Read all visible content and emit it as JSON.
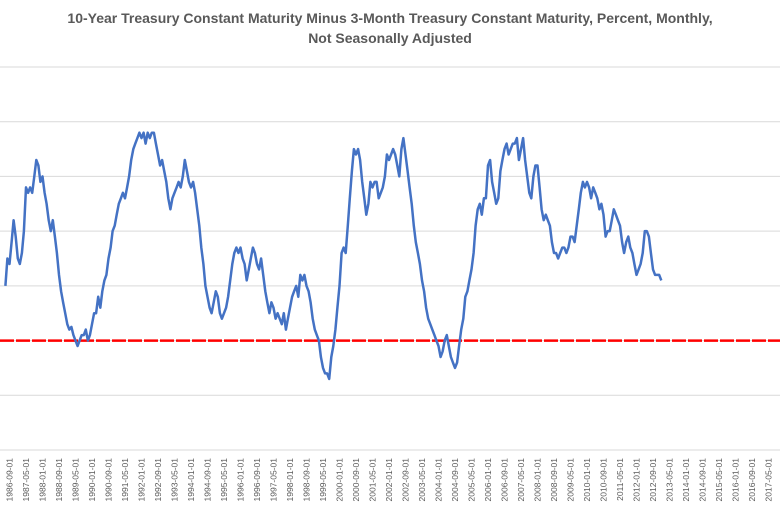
{
  "chart_data": {
    "type": "line",
    "title_line1": "10-Year Treasury Constant Maturity Minus 3-Month Treasury Constant Maturity, Percent, Monthly,",
    "title_line2": "Not Seasonally Adjusted",
    "xlabel": "",
    "ylabel": "",
    "grid": true,
    "legend": "none",
    "ylim": [
      -2,
      5
    ],
    "line_color": "#4472c4",
    "reference_line": {
      "value": 0,
      "color": "#ff0000",
      "style": "dotted"
    },
    "x_tick_labels": [
      "1986-09-01",
      "1987-05-01",
      "1988-01-01",
      "1988-09-01",
      "1989-05-01",
      "1990-01-01",
      "1990-09-01",
      "1991-05-01",
      "1992-01-01",
      "1992-09-01",
      "1993-05-01",
      "1994-01-01",
      "1994-09-01",
      "1995-05-01",
      "1996-01-01",
      "1996-09-01",
      "1997-05-01",
      "1998-01-01",
      "1998-09-01",
      "1999-05-01",
      "2000-01-01",
      "2000-09-01",
      "2001-05-01",
      "2002-01-01",
      "2002-09-01",
      "2003-05-01",
      "2004-01-01",
      "2004-09-01",
      "2005-05-01",
      "2006-01-01",
      "2006-09-01",
      "2007-05-01",
      "2008-01-01",
      "2008-09-01",
      "2009-05-01",
      "2010-01-01",
      "2010-09-01",
      "2011-05-01",
      "2012-01-01",
      "2012-09-01",
      "2013-05-01",
      "2014-01-01",
      "2014-09-01",
      "2015-05-01",
      "2016-01-01",
      "2016-09-01",
      "2017-05-01"
    ],
    "series": [
      {
        "x_start": "1986-07-01",
        "step_months": 1,
        "values": [
          1.0,
          1.5,
          1.4,
          1.8,
          2.2,
          1.9,
          1.5,
          1.4,
          1.6,
          2.0,
          2.8,
          2.7,
          2.8,
          2.7,
          3.0,
          3.3,
          3.2,
          2.9,
          3.0,
          2.7,
          2.5,
          2.2,
          2.0,
          2.2,
          1.9,
          1.6,
          1.2,
          0.9,
          0.7,
          0.5,
          0.3,
          0.2,
          0.25,
          0.1,
          0.0,
          -0.1,
          0.0,
          0.1,
          0.1,
          0.2,
          0.0,
          0.1,
          0.3,
          0.5,
          0.5,
          0.8,
          0.6,
          0.9,
          1.1,
          1.2,
          1.5,
          1.7,
          2.0,
          2.1,
          2.3,
          2.5,
          2.6,
          2.7,
          2.6,
          2.8,
          3.0,
          3.3,
          3.5,
          3.6,
          3.7,
          3.8,
          3.7,
          3.8,
          3.6,
          3.8,
          3.7,
          3.8,
          3.8,
          3.6,
          3.4,
          3.2,
          3.3,
          3.1,
          2.9,
          2.6,
          2.4,
          2.6,
          2.7,
          2.8,
          2.9,
          2.8,
          3.0,
          3.3,
          3.1,
          2.9,
          2.8,
          2.9,
          2.7,
          2.4,
          2.1,
          1.7,
          1.4,
          1.0,
          0.8,
          0.6,
          0.5,
          0.7,
          0.9,
          0.8,
          0.5,
          0.4,
          0.5,
          0.6,
          0.8,
          1.1,
          1.4,
          1.6,
          1.7,
          1.6,
          1.7,
          1.5,
          1.4,
          1.1,
          1.3,
          1.5,
          1.7,
          1.6,
          1.4,
          1.3,
          1.5,
          1.2,
          0.9,
          0.7,
          0.5,
          0.7,
          0.6,
          0.4,
          0.5,
          0.4,
          0.3,
          0.5,
          0.2,
          0.4,
          0.6,
          0.8,
          0.9,
          1.0,
          0.8,
          1.2,
          1.1,
          1.2,
          1.0,
          0.9,
          0.7,
          0.4,
          0.2,
          0.1,
          0.0,
          -0.3,
          -0.5,
          -0.6,
          -0.6,
          -0.7,
          -0.3,
          -0.1,
          0.2,
          0.6,
          1.0,
          1.6,
          1.7,
          1.6,
          2.1,
          2.6,
          3.1,
          3.5,
          3.4,
          3.5,
          3.3,
          2.9,
          2.6,
          2.3,
          2.5,
          2.9,
          2.8,
          2.9,
          2.9,
          2.6,
          2.7,
          2.8,
          3.0,
          3.4,
          3.3,
          3.4,
          3.5,
          3.4,
          3.2,
          3.0,
          3.5,
          3.7,
          3.4,
          3.1,
          2.8,
          2.5,
          2.1,
          1.8,
          1.6,
          1.4,
          1.1,
          0.9,
          0.6,
          0.4,
          0.3,
          0.2,
          0.1,
          0.0,
          -0.1,
          -0.3,
          -0.2,
          0.0,
          0.1,
          -0.1,
          -0.3,
          -0.4,
          -0.5,
          -0.4,
          -0.1,
          0.2,
          0.4,
          0.8,
          0.9,
          1.1,
          1.3,
          1.6,
          2.1,
          2.4,
          2.5,
          2.3,
          2.6,
          2.6,
          3.2,
          3.3,
          2.9,
          2.7,
          2.5,
          2.6,
          3.1,
          3.3,
          3.5,
          3.6,
          3.4,
          3.5,
          3.6,
          3.6,
          3.7,
          3.3,
          3.5,
          3.7,
          3.3,
          3.0,
          2.7,
          2.6,
          3.0,
          3.2,
          3.2,
          2.8,
          2.4,
          2.2,
          2.3,
          2.2,
          2.1,
          1.8,
          1.6,
          1.6,
          1.5,
          1.6,
          1.7,
          1.7,
          1.6,
          1.7,
          1.9,
          1.9,
          1.8,
          2.1,
          2.4,
          2.7,
          2.9,
          2.8,
          2.9,
          2.8,
          2.6,
          2.8,
          2.7,
          2.6,
          2.4,
          2.5,
          2.3,
          1.9,
          2.0,
          2.0,
          2.2,
          2.4,
          2.3,
          2.2,
          2.1,
          1.8,
          1.6,
          1.8,
          1.9,
          1.7,
          1.6,
          1.4,
          1.2,
          1.3,
          1.4,
          1.6,
          2.0,
          2.0,
          1.9,
          1.6,
          1.3,
          1.2,
          1.2,
          1.2,
          1.1
        ]
      }
    ]
  }
}
